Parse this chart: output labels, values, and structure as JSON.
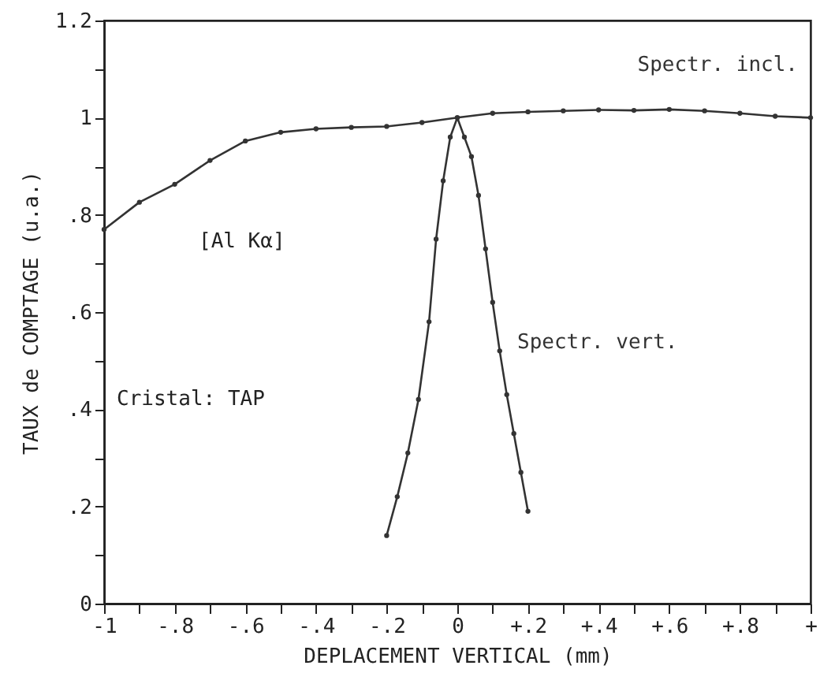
{
  "chart_data": {
    "type": "line",
    "xlabel": "DEPLACEMENT VERTICAL (mm)",
    "ylabel": "TAUX de COMPTAGE (u.a.)",
    "annotations": [
      "[Al Kα]",
      "Cristal: TAP"
    ],
    "series": [
      {
        "name": "Spectr. incl.",
        "color": "#333333",
        "x": [
          -1,
          -0.9,
          -0.8,
          -0.7,
          -0.6,
          -0.5,
          -0.4,
          -0.3,
          -0.2,
          -0.1,
          0,
          0.1,
          0.2,
          0.3,
          0.4,
          0.5,
          0.6,
          0.7,
          0.8,
          0.9,
          1
        ],
        "values": [
          0.77,
          0.826,
          0.863,
          0.912,
          0.952,
          0.97,
          0.977,
          0.98,
          0.982,
          0.99,
          1.0,
          1.009,
          1.012,
          1.014,
          1.016,
          1.015,
          1.017,
          1.014,
          1.009,
          1.003,
          1.0
        ]
      },
      {
        "name": "Spectr. vert.",
        "color": "#333333",
        "x": [
          -0.2,
          -0.17,
          -0.14,
          -0.11,
          -0.08,
          -0.06,
          -0.04,
          -0.02,
          0,
          0.02,
          0.04,
          0.06,
          0.08,
          0.1,
          0.12,
          0.14,
          0.16,
          0.18,
          0.2
        ],
        "values": [
          0.14,
          0.22,
          0.31,
          0.42,
          0.58,
          0.75,
          0.87,
          0.96,
          1.0,
          0.96,
          0.92,
          0.84,
          0.73,
          0.62,
          0.52,
          0.43,
          0.35,
          0.27,
          0.19
        ]
      }
    ],
    "xlim": [
      -1,
      1
    ],
    "ylim": [
      0,
      1.2
    ],
    "xticks": [
      {
        "value": -1,
        "label": "-1"
      },
      {
        "value": -0.9,
        "label": null
      },
      {
        "value": -0.8,
        "label": "-.8"
      },
      {
        "value": -0.7,
        "label": null
      },
      {
        "value": -0.6,
        "label": "-.6"
      },
      {
        "value": -0.5,
        "label": null
      },
      {
        "value": -0.4,
        "label": "-.4"
      },
      {
        "value": -0.3,
        "label": null
      },
      {
        "value": -0.2,
        "label": "-.2"
      },
      {
        "value": -0.1,
        "label": null
      },
      0,
      {
        "value": 0.1,
        "label": null
      },
      {
        "value": 0.2,
        "label": "+.2"
      },
      {
        "value": 0.3,
        "label": null
      },
      {
        "value": 0.4,
        "label": "+.4"
      },
      {
        "value": 0.5,
        "label": null
      },
      {
        "value": 0.6,
        "label": "+.6"
      },
      {
        "value": 0.7,
        "label": null
      },
      {
        "value": 0.8,
        "label": "+.8"
      },
      {
        "value": 0.9,
        "label": null
      },
      {
        "value": 1,
        "label": "+"
      }
    ],
    "yticks": [
      0,
      {
        "value": 0.1,
        "label": null
      },
      {
        "value": 0.2,
        "label": ".2"
      },
      {
        "value": 0.3,
        "label": null
      },
      {
        "value": 0.4,
        "label": ".4"
      },
      {
        "value": 0.5,
        "label": null
      },
      {
        "value": 0.6,
        "label": ".6"
      },
      {
        "value": 0.7,
        "label": null
      },
      {
        "value": 0.8,
        "label": ".8"
      },
      {
        "value": 0.9,
        "label": null
      },
      1,
      {
        "value": 1.1,
        "label": null
      },
      1.2
    ],
    "grid": false,
    "marker": "circle",
    "line_style": "solid"
  }
}
